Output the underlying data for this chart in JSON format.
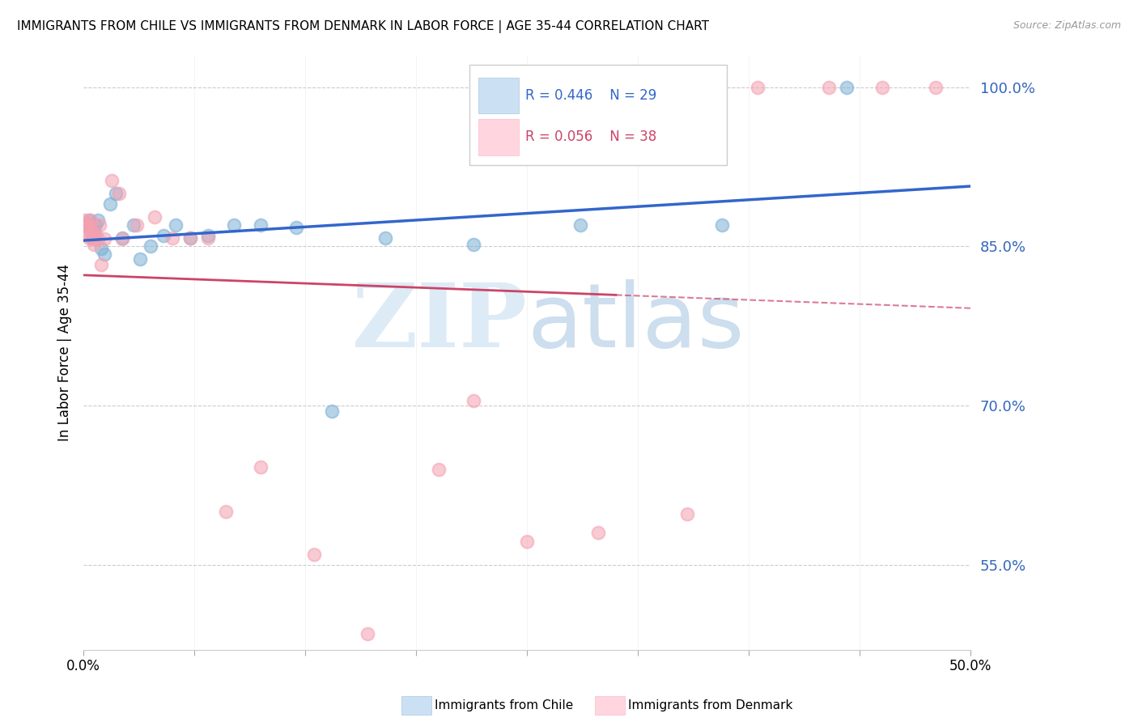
{
  "title": "IMMIGRANTS FROM CHILE VS IMMIGRANTS FROM DENMARK IN LABOR FORCE | AGE 35-44 CORRELATION CHART",
  "source": "Source: ZipAtlas.com",
  "ylabel": "In Labor Force | Age 35-44",
  "blue_label": "Immigrants from Chile",
  "pink_label": "Immigrants from Denmark",
  "blue_color": "#7BAFD4",
  "pink_color": "#F4A0B0",
  "blue_line_color": "#3366CC",
  "pink_line_color": "#CC4466",
  "legend_blue_r": "R = 0.446",
  "legend_blue_n": "N = 29",
  "legend_pink_r": "R = 0.056",
  "legend_pink_n": "N = 38",
  "xlim": [
    0.0,
    0.5
  ],
  "ylim": [
    0.47,
    1.03
  ],
  "right_yticks": [
    1.0,
    0.85,
    0.7,
    0.55
  ],
  "right_yticklabels": [
    "100.0%",
    "85.0%",
    "70.0%",
    "55.0%"
  ],
  "blue_x": [
    0.001,
    0.002,
    0.003,
    0.004,
    0.005,
    0.006,
    0.007,
    0.008,
    0.01,
    0.012,
    0.015,
    0.018,
    0.022,
    0.028,
    0.032,
    0.038,
    0.045,
    0.052,
    0.06,
    0.07,
    0.085,
    0.1,
    0.12,
    0.14,
    0.17,
    0.22,
    0.28,
    0.36,
    0.43
  ],
  "blue_y": [
    0.87,
    0.872,
    0.875,
    0.868,
    0.86,
    0.865,
    0.87,
    0.875,
    0.848,
    0.843,
    0.89,
    0.9,
    0.858,
    0.87,
    0.838,
    0.85,
    0.86,
    0.87,
    0.858,
    0.86,
    0.87,
    0.87,
    0.868,
    0.695,
    0.858,
    0.852,
    0.87,
    0.87,
    1.0
  ],
  "pink_x": [
    0.001,
    0.001,
    0.002,
    0.002,
    0.003,
    0.003,
    0.004,
    0.004,
    0.005,
    0.005,
    0.006,
    0.006,
    0.007,
    0.008,
    0.009,
    0.01,
    0.012,
    0.016,
    0.02,
    0.022,
    0.03,
    0.04,
    0.05,
    0.06,
    0.07,
    0.08,
    0.1,
    0.13,
    0.16,
    0.2,
    0.22,
    0.25,
    0.29,
    0.34,
    0.38,
    0.42,
    0.45,
    0.48
  ],
  "pink_y": [
    0.87,
    0.875,
    0.868,
    0.872,
    0.858,
    0.862,
    0.87,
    0.875,
    0.857,
    0.862,
    0.852,
    0.858,
    0.862,
    0.857,
    0.87,
    0.833,
    0.857,
    0.912,
    0.9,
    0.857,
    0.87,
    0.878,
    0.858,
    0.858,
    0.858,
    0.6,
    0.642,
    0.56,
    0.485,
    0.64,
    0.705,
    0.572,
    0.58,
    0.598,
    1.0,
    1.0,
    1.0,
    1.0
  ]
}
